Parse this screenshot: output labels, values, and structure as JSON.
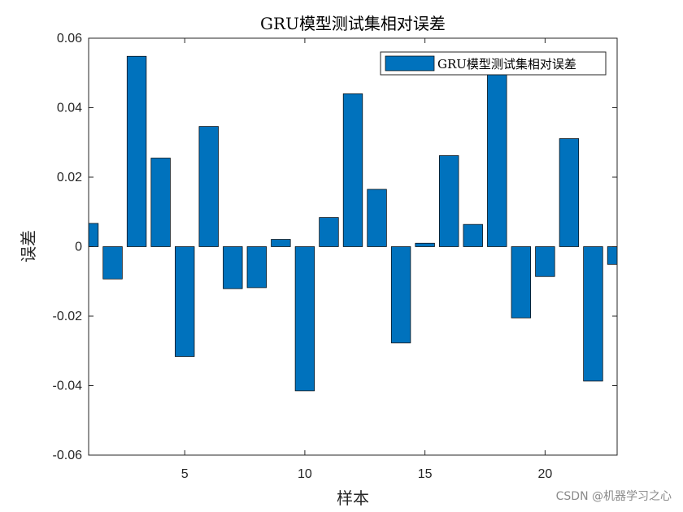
{
  "watermark": "CSDN @机器学习之心",
  "chart_data": {
    "type": "bar",
    "title": "GRU模型测试集相对误差",
    "xlabel": "样本",
    "ylabel": "误差",
    "xlim": [
      1,
      23
    ],
    "ylim": [
      -0.06,
      0.06
    ],
    "x_ticks": [
      5,
      10,
      15,
      20
    ],
    "y_ticks": [
      -0.06,
      -0.04,
      -0.02,
      0,
      0.02,
      0.04,
      0.06
    ],
    "y_tick_labels": [
      "-0.06",
      "-0.04",
      "-0.02",
      "0",
      "0.02",
      "0.04",
      "0.06"
    ],
    "legend_position": "top-right",
    "bar_color": "#0072bd",
    "grid": false,
    "series": [
      {
        "name": "GRU模型测试集相对误差",
        "x": [
          1,
          2,
          3,
          4,
          5,
          6,
          7,
          8,
          9,
          10,
          11,
          12,
          13,
          14,
          15,
          16,
          17,
          18,
          19,
          20,
          21,
          22,
          23
        ],
        "values": [
          0.0067,
          -0.0093,
          0.0548,
          0.0255,
          -0.0316,
          0.0346,
          -0.0121,
          -0.0118,
          0.0021,
          -0.0415,
          0.0084,
          0.044,
          0.0165,
          -0.0277,
          0.001,
          0.0262,
          0.0064,
          0.0505,
          -0.0205,
          -0.0086,
          0.0311,
          -0.0387,
          -0.0051
        ]
      }
    ]
  }
}
